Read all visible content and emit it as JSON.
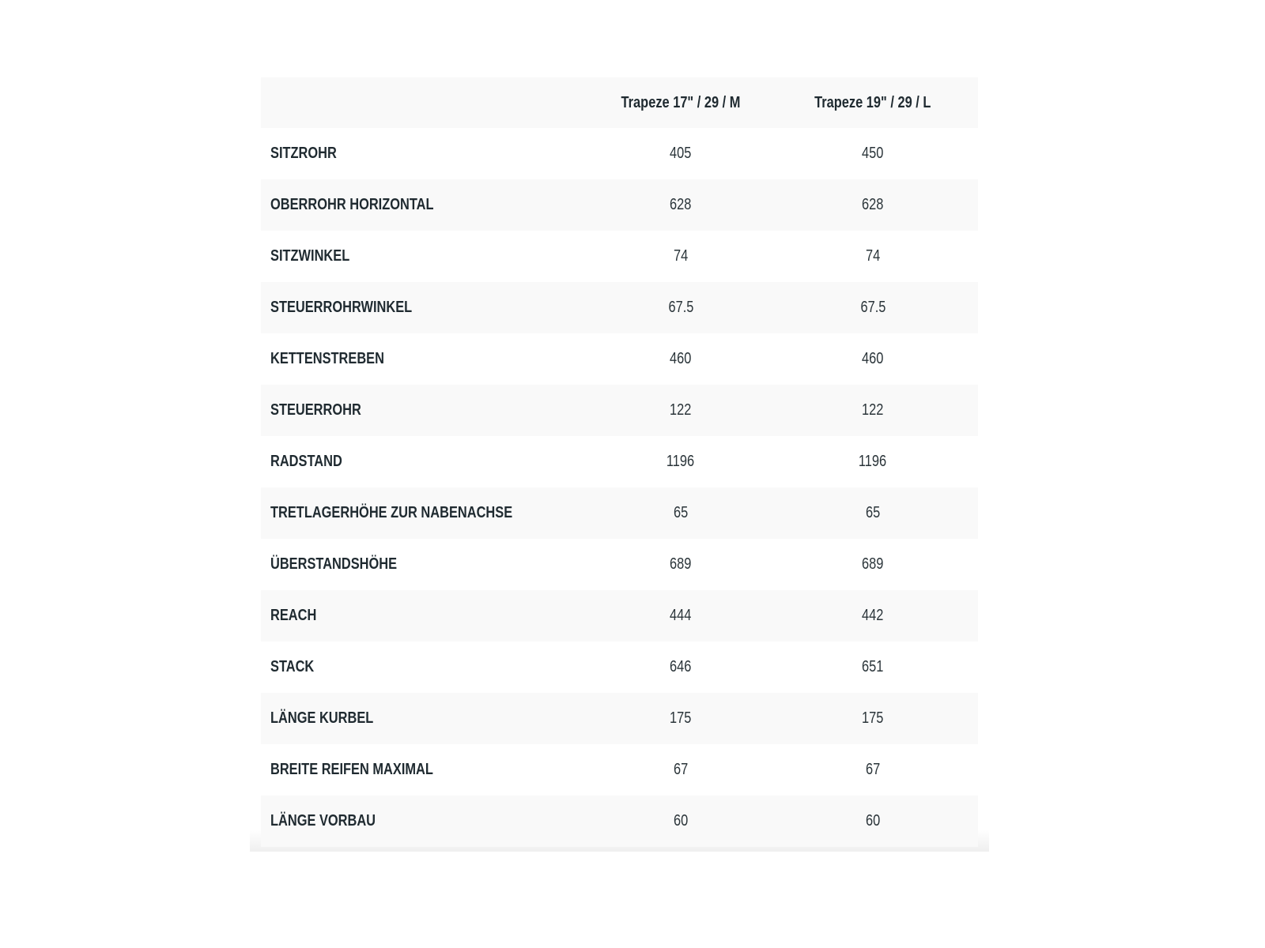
{
  "table": {
    "columns": [
      "",
      "Trapeze 17\" / 29 / M",
      "Trapeze 19\" / 29 / L"
    ],
    "rows": [
      {
        "label": "SITZROHR",
        "m": "405",
        "l": "450"
      },
      {
        "label": "OBERROHR HORIZONTAL",
        "m": "628",
        "l": "628"
      },
      {
        "label": "SITZWINKEL",
        "m": "74",
        "l": "74"
      },
      {
        "label": "STEUERROHRWINKEL",
        "m": "67.5",
        "l": "67.5"
      },
      {
        "label": "KETTENSTREBEN",
        "m": "460",
        "l": "460"
      },
      {
        "label": "STEUERROHR",
        "m": "122",
        "l": "122"
      },
      {
        "label": "RADSTAND",
        "m": "1196",
        "l": "1196"
      },
      {
        "label": "TRETLAGERHÖHE ZUR NABENACHSE",
        "m": "65",
        "l": "65"
      },
      {
        "label": "ÜBERSTANDSHÖHE",
        "m": "689",
        "l": "689"
      },
      {
        "label": "REACH",
        "m": "444",
        "l": "442"
      },
      {
        "label": "STACK",
        "m": "646",
        "l": "651"
      },
      {
        "label": "LÄNGE KURBEL",
        "m": "175",
        "l": "175"
      },
      {
        "label": "BREITE REIFEN MAXIMAL",
        "m": "67",
        "l": "67"
      },
      {
        "label": "LÄNGE VORBAU",
        "m": "60",
        "l": "60"
      }
    ]
  }
}
